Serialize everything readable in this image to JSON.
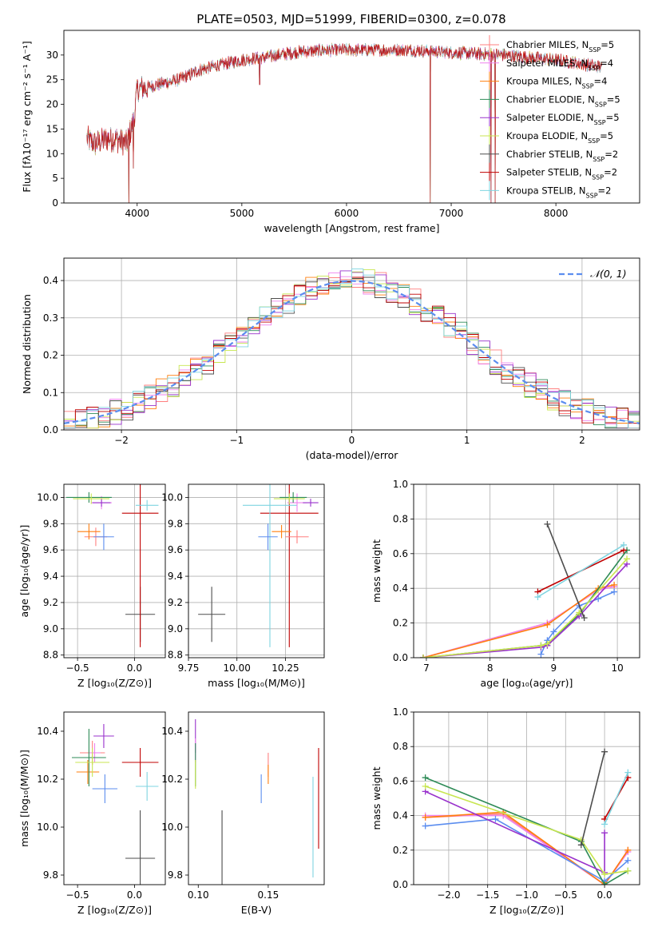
{
  "figure_title": "PLATE=0503, MJD=51999, FIBERID=0300, z=0.078",
  "colors": {
    "ChabMILES": "#ff7f7f",
    "SalpMILES": "#ee82ee",
    "KrouMILES": "#ff7f0e",
    "ChabELODIE": "#2e8b57",
    "SalpELODIE": "#9932cc",
    "KrouELODIE": "#c8e650",
    "ChabSTELIB": "#4d4d4d",
    "SalpSTELIB": "#c00000",
    "KrouSTELIB": "#7fd4e0",
    "KrouMILES_pt": "#ff7f0e",
    "blue": "#5b8def",
    "gauss": "#5b8def"
  },
  "chart_data": [
    {
      "id": "spectrum",
      "type": "line",
      "title": "PLATE=0503, MJD=51999, FIBERID=0300, z=0.078",
      "xlabel": "wavelength [Angstrom, rest frame]",
      "ylabel": "Flux [fλ10⁻¹⁷ erg cm⁻² s⁻¹ A⁻¹]",
      "xlim": [
        3300,
        8800
      ],
      "ylim": [
        0,
        35
      ],
      "xticks": [
        4000,
        5000,
        6000,
        7000,
        8000
      ],
      "yticks": [
        0,
        5,
        10,
        15,
        20,
        25,
        30
      ],
      "legend_position": "right",
      "legend": [
        {
          "key": "ChabMILES",
          "label": "Chabrier MILES, N",
          "sub": "SSP",
          "n": "=5"
        },
        {
          "key": "SalpMILES",
          "label": "Salpeter MILES, N",
          "sub": "SSP",
          "n": "=4"
        },
        {
          "key": "KrouMILES",
          "label": "Kroupa MILES, N",
          "sub": "SSP",
          "n": "=4"
        },
        {
          "key": "ChabELODIE",
          "label": "Chabrier ELODIE, N",
          "sub": "SSP",
          "n": "=5"
        },
        {
          "key": "SalpELODIE",
          "label": "Salpeter ELODIE, N",
          "sub": "SSP",
          "n": "=5"
        },
        {
          "key": "KrouELODIE",
          "label": "Kroupa ELODIE, N",
          "sub": "SSP",
          "n": "=5"
        },
        {
          "key": "ChabSTELIB",
          "label": "Chabrier STELIB, N",
          "sub": "SSP",
          "n": "=2"
        },
        {
          "key": "SalpSTELIB",
          "label": "Salpeter STELIB, N",
          "sub": "SSP",
          "n": "=2"
        },
        {
          "key": "KrouSTELIB",
          "label": "Kroupa STELIB, N",
          "sub": "SSP",
          "n": "=2"
        }
      ],
      "continuum": [
        [
          3520,
          13
        ],
        [
          3600,
          12
        ],
        [
          3700,
          13
        ],
        [
          3800,
          13
        ],
        [
          3900,
          12
        ],
        [
          3970,
          17
        ],
        [
          4000,
          23
        ],
        [
          4200,
          24
        ],
        [
          4400,
          25
        ],
        [
          4600,
          27
        ],
        [
          4800,
          28
        ],
        [
          5000,
          29
        ],
        [
          5200,
          29.5
        ],
        [
          5500,
          30.5
        ],
        [
          5800,
          31
        ],
        [
          6000,
          31
        ],
        [
          6300,
          31
        ],
        [
          6600,
          31
        ],
        [
          7000,
          30.5
        ],
        [
          7500,
          30
        ],
        [
          8000,
          29
        ],
        [
          8300,
          28
        ],
        [
          8440,
          27.5
        ]
      ],
      "drops": [
        [
          3920,
          0
        ],
        [
          3965,
          7
        ],
        [
          5170,
          24
        ],
        [
          6800,
          0
        ],
        [
          7380,
          0
        ],
        [
          7420,
          0
        ]
      ]
    },
    {
      "id": "residuals",
      "type": "histogram",
      "xlabel": "(data-model)/error",
      "ylabel": "Normed distribution",
      "xlim": [
        -2.5,
        2.5
      ],
      "ylim": [
        0,
        0.46
      ],
      "xticks": [
        -2,
        -1,
        0,
        1,
        2
      ],
      "yticks": [
        0.0,
        0.1,
        0.2,
        0.3,
        0.4
      ],
      "grid": true,
      "legend_position": "top-right",
      "legend_label": "𝒩(0, 1)",
      "bin_width": 0.1
    },
    {
      "id": "age_Z",
      "type": "scatter",
      "xlabel": "Z [log₁₀(Z/Z⊙)]",
      "ylabel": "age  [log₁₀(age/yr)]",
      "xlim": [
        -0.62,
        0.27
      ],
      "ylim": [
        8.78,
        10.1
      ],
      "xticks": [
        -0.5,
        0.0
      ],
      "yticks": [
        8.8,
        9.0,
        9.2,
        9.4,
        9.6,
        9.8,
        10.0
      ],
      "grid": true,
      "points": [
        {
          "key": "ChabSTELIB",
          "x": 0.05,
          "y": 9.11,
          "ex": 0.13,
          "ey": 0.21
        },
        {
          "key": "SalpSTELIB",
          "x": 0.05,
          "y": 9.88,
          "ex": 0.16,
          "ey": 1.02
        },
        {
          "key": "KrouSTELIB",
          "x": 0.11,
          "y": 9.94,
          "ex": 0.1,
          "ey": 0.04
        },
        {
          "key": "ChabMILES",
          "x": -0.34,
          "y": 9.7,
          "ex": 0.1,
          "ey": 0.07
        },
        {
          "key": "KrouMILES",
          "x": -0.4,
          "y": 9.74,
          "ex": 0.1,
          "ey": 0.06
        },
        {
          "key": "blue",
          "x": -0.27,
          "y": 9.7,
          "ex": 0.09,
          "ey": 0.1
        },
        {
          "key": "SalpMILES",
          "x": -0.29,
          "y": 9.96,
          "ex": 0.09,
          "ey": 0.05
        },
        {
          "key": "SalpELODIE",
          "x": -0.29,
          "y": 9.96,
          "ex": 0.08,
          "ey": 0.03
        },
        {
          "key": "ChabELODIE",
          "x": -0.4,
          "y": 10.0,
          "ex": 0.2,
          "ey": 0.04
        },
        {
          "key": "KrouELODIE",
          "x": -0.38,
          "y": 9.99,
          "ex": 0.16,
          "ey": 0.04
        }
      ]
    },
    {
      "id": "age_mass",
      "type": "scatter",
      "xlabel": "mass [log₁₀(M/M⊙)]",
      "ylabel": "",
      "xlim": [
        9.75,
        10.45
      ],
      "ylim": [
        8.78,
        10.1
      ],
      "xticks": [
        9.75,
        10.0,
        10.25
      ],
      "yticks": [
        8.8,
        9.0,
        9.2,
        9.4,
        9.6,
        9.8,
        10.0
      ],
      "grid": true,
      "points": [
        {
          "key": "ChabSTELIB",
          "x": 9.87,
          "y": 9.11,
          "ex": 0.07,
          "ey": 0.21
        },
        {
          "key": "SalpSTELIB",
          "x": 10.27,
          "y": 9.88,
          "ex": 0.15,
          "ey": 1.02
        },
        {
          "key": "KrouSTELIB",
          "x": 10.17,
          "y": 9.94,
          "ex": 0.14,
          "ey": 1.08
        },
        {
          "key": "ChabMILES",
          "x": 10.31,
          "y": 9.7,
          "ex": 0.06,
          "ey": 0.05
        },
        {
          "key": "KrouMILES",
          "x": 10.23,
          "y": 9.74,
          "ex": 0.05,
          "ey": 0.05
        },
        {
          "key": "blue",
          "x": 10.16,
          "y": 9.7,
          "ex": 0.05,
          "ey": 0.1
        },
        {
          "key": "SalpMILES",
          "x": 10.31,
          "y": 9.96,
          "ex": 0.05,
          "ey": 0.07
        },
        {
          "key": "SalpELODIE",
          "x": 10.38,
          "y": 9.96,
          "ex": 0.04,
          "ey": 0.03
        },
        {
          "key": "ChabELODIE",
          "x": 10.29,
          "y": 10.0,
          "ex": 0.07,
          "ey": 0.04
        },
        {
          "key": "KrouELODIE",
          "x": 10.27,
          "y": 9.99,
          "ex": 0.08,
          "ey": 0.04
        }
      ]
    },
    {
      "id": "mw_age",
      "type": "line",
      "xlabel": "age  [log₁₀(age/yr)]",
      "ylabel": "mass weight",
      "xlim": [
        6.8,
        10.35
      ],
      "ylim": [
        0,
        1
      ],
      "xticks": [
        7,
        8,
        9,
        10
      ],
      "yticks": [
        0.0,
        0.2,
        0.4,
        0.6,
        0.8,
        1.0
      ],
      "grid": true,
      "series": [
        {
          "key": "ChabMILES",
          "x": [
            6.95,
            8.9,
            9.7,
            9.95
          ],
          "y": [
            0.0,
            0.2,
            0.39,
            0.41
          ]
        },
        {
          "key": "SalpMILES",
          "x": [
            6.95,
            8.9,
            9.7,
            9.95
          ],
          "y": [
            0.0,
            0.2,
            0.39,
            0.41
          ]
        },
        {
          "key": "KrouMILES",
          "x": [
            6.95,
            8.9,
            9.7,
            9.95
          ],
          "y": [
            0.0,
            0.19,
            0.4,
            0.42
          ]
        },
        {
          "key": "blue",
          "x": [
            8.8,
            8.9,
            9.0,
            9.4,
            9.7,
            9.95
          ],
          "y": [
            0.02,
            0.1,
            0.15,
            0.3,
            0.34,
            0.38
          ]
        },
        {
          "key": "ChabELODIE",
          "x": [
            6.95,
            8.8,
            8.9,
            9.4,
            10.15
          ],
          "y": [
            0.0,
            0.07,
            0.08,
            0.25,
            0.62
          ]
        },
        {
          "key": "SalpELODIE",
          "x": [
            6.95,
            8.8,
            8.9,
            9.4,
            10.15
          ],
          "y": [
            0.0,
            0.06,
            0.07,
            0.24,
            0.54
          ]
        },
        {
          "key": "KrouELODIE",
          "x": [
            6.95,
            8.8,
            8.9,
            9.4,
            10.15
          ],
          "y": [
            0.0,
            0.07,
            0.08,
            0.26,
            0.57
          ]
        },
        {
          "key": "ChabSTELIB",
          "x": [
            8.9,
            9.48
          ],
          "y": [
            0.77,
            0.23
          ]
        },
        {
          "key": "SalpSTELIB",
          "x": [
            8.75,
            10.1
          ],
          "y": [
            0.38,
            0.62
          ]
        },
        {
          "key": "KrouSTELIB",
          "x": [
            8.75,
            10.1
          ],
          "y": [
            0.35,
            0.65
          ]
        }
      ]
    },
    {
      "id": "mass_Z",
      "type": "scatter",
      "xlabel": "Z [log₁₀(Z/Z⊙)]",
      "ylabel": "mass [log₁₀(M/M⊙)]",
      "xlim": [
        -0.62,
        0.27
      ],
      "ylim": [
        9.76,
        10.48
      ],
      "xticks": [
        -0.5,
        0.0
      ],
      "yticks": [
        9.8,
        10.0,
        10.2,
        10.4
      ],
      "grid": false,
      "points": [
        {
          "key": "ChabSTELIB",
          "x": 0.05,
          "y": 9.87,
          "ex": 0.13,
          "ey": 0.2
        },
        {
          "key": "SalpSTELIB",
          "x": 0.05,
          "y": 10.27,
          "ex": 0.16,
          "ey": 0.06
        },
        {
          "key": "KrouSTELIB",
          "x": 0.11,
          "y": 10.17,
          "ex": 0.1,
          "ey": 0.06
        },
        {
          "key": "ChabMILES",
          "x": -0.37,
          "y": 10.31,
          "ex": 0.11,
          "ey": 0.05
        },
        {
          "key": "KrouMILES",
          "x": -0.41,
          "y": 10.23,
          "ex": 0.1,
          "ey": 0.05
        },
        {
          "key": "blue",
          "x": -0.26,
          "y": 10.16,
          "ex": 0.11,
          "ey": 0.06
        },
        {
          "key": "SalpELODIE",
          "x": -0.27,
          "y": 10.38,
          "ex": 0.09,
          "ey": 0.05
        },
        {
          "key": "SalpMILES",
          "x": -0.35,
          "y": 10.31,
          "ex": 0.05,
          "ey": 0.04
        },
        {
          "key": "ChabELODIE",
          "x": -0.4,
          "y": 10.29,
          "ex": 0.15,
          "ey": 0.12
        },
        {
          "key": "KrouELODIE",
          "x": -0.37,
          "y": 10.27,
          "ex": 0.15,
          "ey": 0.06
        }
      ]
    },
    {
      "id": "mass_ebv",
      "type": "scatter",
      "xlabel": "E(B-V)",
      "ylabel": "",
      "xlim": [
        0.093,
        0.19
      ],
      "ylim": [
        9.76,
        10.48
      ],
      "xticks": [
        0.1,
        0.15
      ],
      "yticks": [
        9.8,
        10.0,
        10.2,
        10.4
      ],
      "grid": false,
      "points": [
        {
          "key": "ChabSTELIB",
          "x": 0.117,
          "y": 9.87,
          "ex": 0,
          "ey": 0.2
        },
        {
          "key": "SalpSTELIB",
          "x": 0.186,
          "y": 10.12,
          "ex": 0,
          "ey": 0.21
        },
        {
          "key": "KrouSTELIB",
          "x": 0.182,
          "y": 10.0,
          "ex": 0,
          "ey": 0.21
        },
        {
          "key": "ChabMILES",
          "x": 0.15,
          "y": 10.26,
          "ex": 0,
          "ey": 0.05
        },
        {
          "key": "KrouMILES",
          "x": 0.15,
          "y": 10.22,
          "ex": 0,
          "ey": 0.04
        },
        {
          "key": "blue",
          "x": 0.145,
          "y": 10.16,
          "ex": 0,
          "ey": 0.06
        },
        {
          "key": "SalpELODIE",
          "x": 0.098,
          "y": 10.38,
          "ex": 0,
          "ey": 0.07
        },
        {
          "key": "SalpMILES",
          "x": 0.098,
          "y": 10.32,
          "ex": 0,
          "ey": 0.05
        },
        {
          "key": "ChabELODIE",
          "x": 0.098,
          "y": 10.26,
          "ex": 0,
          "ey": 0.09
        },
        {
          "key": "KrouELODIE",
          "x": 0.098,
          "y": 10.22,
          "ex": 0,
          "ey": 0.06
        }
      ]
    },
    {
      "id": "mw_Z",
      "type": "line",
      "xlabel": "Z [log₁₀(Z/Z⊙)]",
      "ylabel": "mass weight",
      "xlim": [
        -2.45,
        0.45
      ],
      "ylim": [
        0,
        1
      ],
      "xticks": [
        -2.0,
        -1.5,
        -1.0,
        -0.5,
        0.0
      ],
      "yticks": [
        0.0,
        0.2,
        0.4,
        0.6,
        0.8,
        1.0
      ],
      "grid": true,
      "series": [
        {
          "key": "ChabMILES",
          "x": [
            -2.3,
            -1.3,
            0.0,
            0.3
          ],
          "y": [
            0.39,
            0.41,
            0.0,
            0.2
          ]
        },
        {
          "key": "SalpMILES",
          "x": [
            -2.3,
            -1.3,
            0.0,
            0.3
          ],
          "y": [
            0.4,
            0.4,
            0.0,
            0.19
          ]
        },
        {
          "key": "KrouMILES",
          "x": [
            -2.3,
            -1.3,
            0.0,
            0.3
          ],
          "y": [
            0.39,
            0.42,
            0.0,
            0.2
          ]
        },
        {
          "key": "blue",
          "x": [
            -2.3,
            -1.4,
            0.0,
            0.3
          ],
          "y": [
            0.34,
            0.38,
            0.02,
            0.14
          ]
        },
        {
          "key": "ChabELODIE",
          "x": [
            -2.3,
            -0.3,
            0.0,
            0.3
          ],
          "y": [
            0.62,
            0.25,
            0.0,
            0.08
          ]
        },
        {
          "key": "SalpELODIE",
          "x": [
            -2.3,
            0.0,
            0.0
          ],
          "y": [
            0.54,
            0.07,
            0.3
          ]
        },
        {
          "key": "KrouELODIE",
          "x": [
            -2.3,
            -0.3,
            0.0,
            0.3
          ],
          "y": [
            0.57,
            0.26,
            0.06,
            0.08
          ]
        },
        {
          "key": "ChabSTELIB",
          "x": [
            -0.3,
            0.0
          ],
          "y": [
            0.23,
            0.77
          ]
        },
        {
          "key": "SalpSTELIB",
          "x": [
            0.0,
            0.3
          ],
          "y": [
            0.38,
            0.62
          ]
        },
        {
          "key": "KrouSTELIB",
          "x": [
            0.0,
            0.3
          ],
          "y": [
            0.35,
            0.65
          ]
        }
      ]
    }
  ]
}
